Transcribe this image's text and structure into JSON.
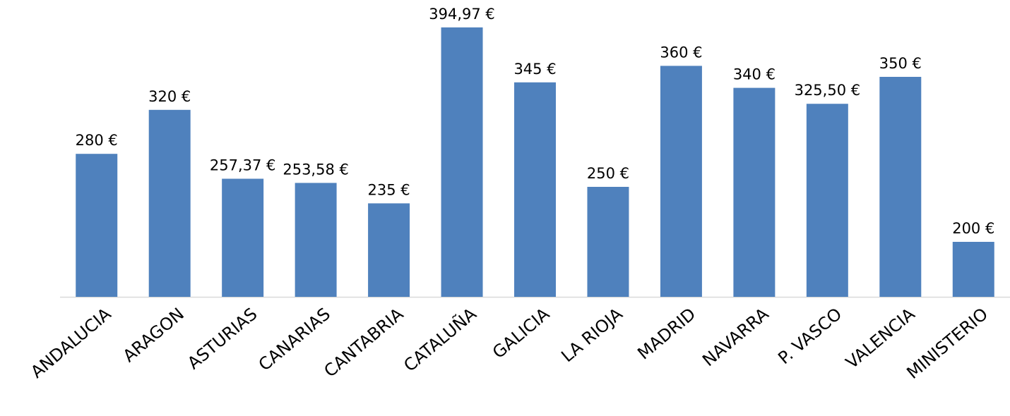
{
  "chart_data": {
    "type": "bar",
    "categories": [
      "ANDALUCIA",
      "ARAGON",
      "ASTURIAS",
      "CANARIAS",
      "CANTABRIA",
      "CATALUÑA",
      "GALICIA",
      "LA RIOJA",
      "MADRID",
      "NAVARRA",
      "P. VASCO",
      "VALENCIA",
      "MINISTERIO"
    ],
    "values": [
      280,
      320,
      257.37,
      253.58,
      235,
      394.97,
      345,
      250,
      360,
      340,
      325.5,
      350,
      200
    ],
    "value_labels": [
      "280 €",
      "320 €",
      "257,37 €",
      "253,58 €",
      "235 €",
      "394,97 €",
      "345 €",
      "250 €",
      "360 €",
      "340 €",
      "325,50 €",
      "350 €",
      "200 €"
    ],
    "color": "#4f81bd",
    "ylim": [
      150,
      400
    ]
  }
}
